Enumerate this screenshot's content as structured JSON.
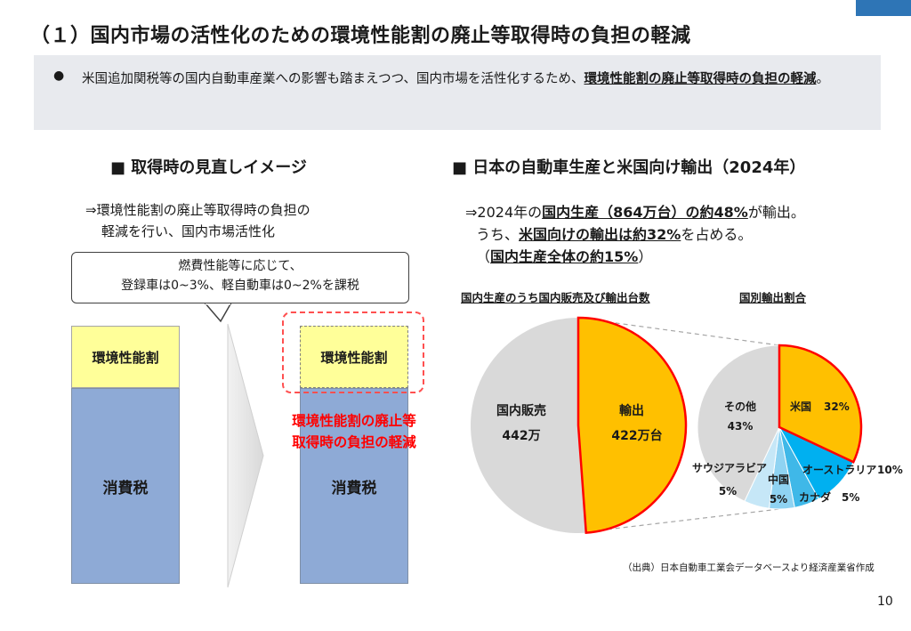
{
  "title": "（１）国内市場の活性化のための環境性能割の廃止等取得時の負担の軽減",
  "summary": {
    "bullet": "●",
    "text_plain": "米国追加関税等の国内自動車産業への影響も踏まえつつ、国内市場を活性化するため、",
    "text_emph": "環境性能割の廃止等取得時の負担の軽減",
    "text_end": "。"
  },
  "left": {
    "heading": "■ 取得時の見直しイメージ",
    "desc_line1": "⇒環境性能割の廃止等取得時の負担の",
    "desc_line2": "軽減を行い、国内市場活性化",
    "callout_line1": "燃費性能等に応じて、",
    "callout_line2": "登録車は0~3%、軽自動車は0~2%を課税",
    "bar_top_label": "環境性能割",
    "bar_bottom_label": "消費税",
    "caption_line1": "環境性能割の廃止等",
    "caption_line2": "取得時の負担の軽減"
  },
  "right": {
    "heading": "■ 日本の自動車生産と米国向け輸出（2024年）",
    "desc_l1_a": "⇒2024年の",
    "desc_l1_b": "国内生産（864万台）の約48%",
    "desc_l1_c": "が輸出。",
    "desc_l2_a": "うち、",
    "desc_l2_b": "米国向けの輸出は約32%",
    "desc_l2_c": "を占める。",
    "desc_l3_a": "（",
    "desc_l3_b": "国内生産全体の約15%",
    "desc_l3_c": "）"
  },
  "chart_data": [
    {
      "type": "pie",
      "title": "国内生産のうち国内販売及び輸出台数",
      "slices": [
        {
          "label": "国内販売",
          "value_label": "442万",
          "value": 442,
          "color": "#d9d9d9"
        },
        {
          "label": "輸出",
          "value_label": "422万台",
          "value": 422,
          "color": "#ffc000"
        }
      ]
    },
    {
      "type": "pie",
      "title": "国別輸出割合",
      "slices": [
        {
          "label": "米国",
          "value_label": "32%",
          "value": 32,
          "color": "#ffc000"
        },
        {
          "label": "オーストラリア",
          "value_label": "10%",
          "value": 10,
          "color": "#00b0f0"
        },
        {
          "label": "カナダ",
          "value_label": "5%",
          "value": 5,
          "color": "#3fb8e8"
        },
        {
          "label": "中国",
          "value_label": "5%",
          "value": 5,
          "color": "#8fd3f2"
        },
        {
          "label": "サウジアラビア",
          "value_label": "5%",
          "value": 5,
          "color": "#c6e7f7"
        },
        {
          "label": "その他",
          "value_label": "43%",
          "value": 43,
          "color": "#d9d9d9"
        }
      ]
    }
  ],
  "source": "（出典）日本自動車工業会データベースより経済産業省作成",
  "page_number": "10",
  "colors": {
    "accent": "#2e75b6",
    "highlight_red": "#ff0000",
    "gold": "#ffc000"
  }
}
